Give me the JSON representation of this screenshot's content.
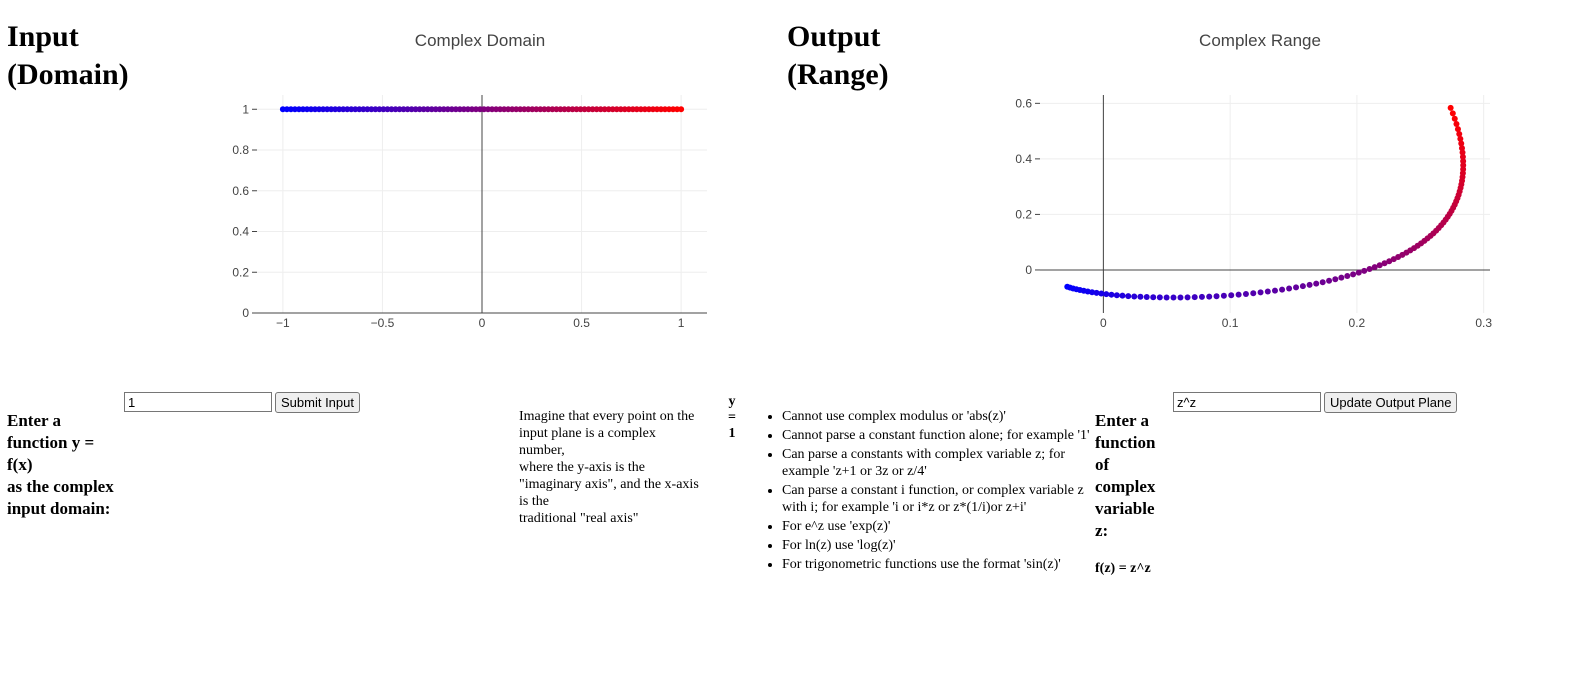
{
  "input": {
    "heading_line1": "Input",
    "heading_line2": "(Domain)",
    "prompt_line1": "Enter a",
    "prompt_line2": "function y =",
    "prompt_line3": "f(x)",
    "prompt_line4": "as the complex",
    "prompt_line5": "input domain:",
    "field_value": "1",
    "submit_label": "Submit Input"
  },
  "output": {
    "heading_line1": "Output",
    "heading_line2": "(Range)",
    "prompt_line1": "Enter a",
    "prompt_line2": "function",
    "prompt_line3": "of",
    "prompt_line4": "complex",
    "prompt_line5": "variable",
    "prompt_line6": "z:",
    "formula": "f(z) = z^z",
    "field_value": "z^z",
    "update_label": "Update Output Plane"
  },
  "explanation": {
    "line1": "Imagine that every point on the",
    "line2": "input plane is a complex",
    "line3": "number,",
    "line4": "where the y-axis is the",
    "line5": "\"imaginary axis\", and the x-axis",
    "line6": "is the",
    "line7": "traditional \"real axis\""
  },
  "current_fn": {
    "line1": "y",
    "line2": "=",
    "line3": "1"
  },
  "notes": [
    "Cannot use complex modulus or 'abs(z)'",
    "Cannot parse a constant function alone; for example '1'",
    "Can parse a constants with complex variable z; for example 'z+1 or 3z or z/4'",
    "Can parse a constant i function, or complex variable z with i; for example 'i or i*z or z*(1/i)or z+i'",
    "For e^z use 'exp(z)'",
    "For ln(z) use 'log(z)'",
    "For trigonometric functions use the format 'sin(z)'"
  ],
  "colors": {
    "start": "#0000ff",
    "end": "#ff0000",
    "grid": "#eeeeee",
    "axis": "#444444"
  },
  "chart_data": [
    {
      "type": "scatter",
      "title": "Complex Domain",
      "xlim": [
        -1,
        1
      ],
      "ylim": [
        0,
        1
      ],
      "x_ticks": [
        -1,
        -0.5,
        0,
        0.5,
        1
      ],
      "x_tick_labels": [
        "−1",
        "−0.5",
        "0",
        "0.5",
        "1"
      ],
      "y_ticks": [
        0,
        0.2,
        0.4,
        0.6,
        0.8,
        1
      ],
      "y_tick_labels": [
        "0",
        "0.2",
        "0.4",
        "0.6",
        "0.8",
        "1"
      ],
      "grid": true,
      "series": [
        {
          "x_range": [
            -1,
            1
          ],
          "y": 1,
          "points": 100,
          "color_gradient": [
            "#0000ff",
            "#ff0000"
          ]
        }
      ]
    },
    {
      "type": "scatter",
      "title": "Complex Range",
      "xlim": [
        -0.03,
        0.3
      ],
      "ylim": [
        -0.1,
        0.6
      ],
      "x_ticks": [
        0,
        0.1,
        0.2,
        0.3
      ],
      "x_tick_labels": [
        "0",
        "0.1",
        "0.2",
        "0.3"
      ],
      "y_ticks": [
        0,
        0.2,
        0.4,
        0.6
      ],
      "y_tick_labels": [
        "0",
        "0.2",
        "0.4",
        "0.6"
      ],
      "grid": true,
      "series": [
        {
          "mapping": "z^z",
          "points": 100,
          "color_gradient": [
            "#0000ff",
            "#ff0000"
          ]
        }
      ]
    }
  ]
}
